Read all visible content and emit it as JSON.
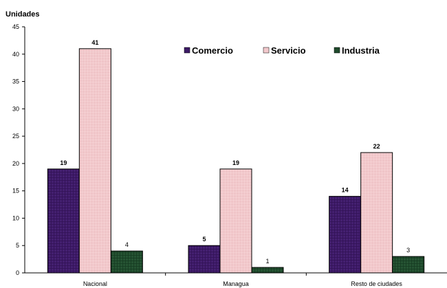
{
  "chart_data": {
    "type": "bar",
    "ylabel": "Unidades",
    "ylim": [
      0,
      45
    ],
    "ytick_step": 5,
    "grid": false,
    "legend_placement": "top-right",
    "categories": [
      "Nacional",
      "Managua",
      "Resto de ciudades"
    ],
    "series": [
      {
        "name": "Comercio",
        "values": [
          19,
          5,
          14
        ],
        "color": "#3d1a66",
        "label_bold": true
      },
      {
        "name": "Servicio",
        "values": [
          41,
          19,
          22
        ],
        "color": "#f2c9cc",
        "label_bold": true
      },
      {
        "name": "Industria",
        "values": [
          4,
          1,
          3
        ],
        "color": "#1f4a2c",
        "label_bold": false
      }
    ]
  }
}
